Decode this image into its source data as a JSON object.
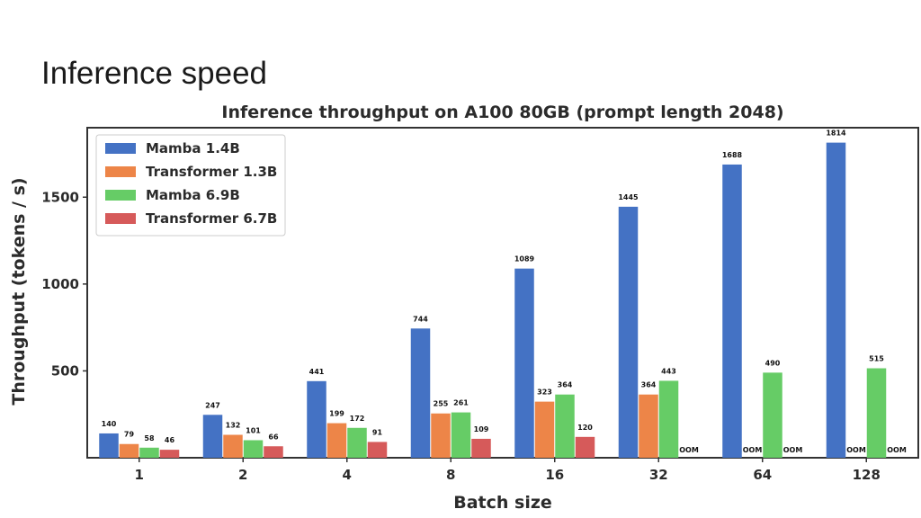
{
  "slide": {
    "title": "Inference speed"
  },
  "chart_data": {
    "type": "bar",
    "title": "Inference throughput on A100 80GB (prompt length 2048)",
    "xlabel": "Batch size",
    "ylabel": "Throughput (tokens / s)",
    "categories": [
      "1",
      "2",
      "4",
      "8",
      "16",
      "32",
      "64",
      "128"
    ],
    "ylim": [
      0,
      1900
    ],
    "yticks": [
      500,
      1000,
      1500
    ],
    "legend_position": "top-left",
    "grid": false,
    "oom_label": "OOM",
    "series": [
      {
        "name": "Mamba 1.4B",
        "color": "#4472c4",
        "values": [
          140,
          247,
          441,
          744,
          1089,
          1445,
          1688,
          1814
        ]
      },
      {
        "name": "Transformer 1.3B",
        "color": "#ed8548",
        "values": [
          79,
          132,
          199,
          255,
          323,
          364,
          null,
          null
        ]
      },
      {
        "name": "Mamba 6.9B",
        "color": "#66cc66",
        "values": [
          58,
          101,
          172,
          261,
          364,
          443,
          490,
          515
        ]
      },
      {
        "name": "Transformer 6.7B",
        "color": "#d65a5a",
        "values": [
          46,
          66,
          91,
          109,
          120,
          null,
          null,
          null
        ]
      }
    ]
  }
}
